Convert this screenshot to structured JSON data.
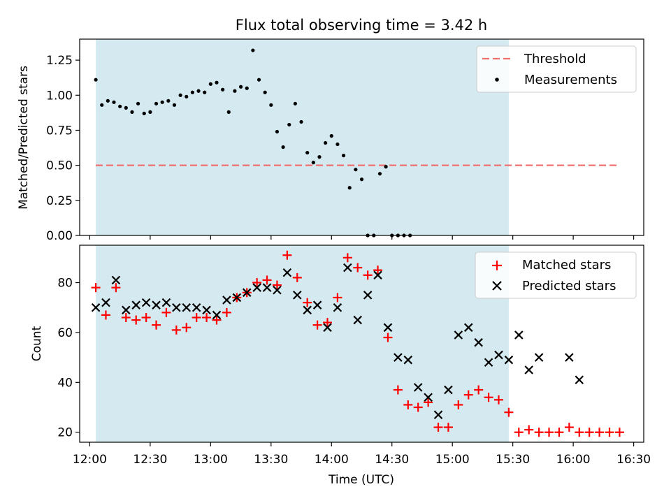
{
  "chart_data": [
    {
      "type": "scatter",
      "title": "Flux total observing time = 3.42 h",
      "xlabel": "",
      "ylabel": "Matched/Predicted stars",
      "ylim": [
        0,
        1.4
      ],
      "yticks": [
        "0.00",
        "0.25",
        "0.50",
        "0.75",
        "1.00",
        "1.25"
      ],
      "yticks_values": [
        0,
        0.25,
        0.5,
        0.75,
        1.0,
        1.25
      ],
      "observing_window": {
        "start": "12:03",
        "end": "15:28",
        "color": "#d4e9f0"
      },
      "threshold": {
        "name": "Threshold",
        "value": 0.5,
        "x_start": "12:03",
        "x_end": "16:23",
        "color": "#f07070"
      },
      "legend": [
        "Threshold",
        "Measurements"
      ],
      "legend_position": "top-right",
      "series": [
        {
          "name": "Measurements",
          "marker": "dot",
          "points": [
            [
              "12:03",
              1.11
            ],
            [
              "12:06",
              0.93
            ],
            [
              "12:09",
              0.96
            ],
            [
              "12:12",
              0.95
            ],
            [
              "12:15",
              0.92
            ],
            [
              "12:18",
              0.91
            ],
            [
              "12:21",
              0.88
            ],
            [
              "12:24",
              0.94
            ],
            [
              "12:27",
              0.87
            ],
            [
              "12:30",
              0.88
            ],
            [
              "12:33",
              0.94
            ],
            [
              "12:36",
              0.95
            ],
            [
              "12:39",
              0.96
            ],
            [
              "12:42",
              0.93
            ],
            [
              "12:45",
              1.0
            ],
            [
              "12:48",
              0.99
            ],
            [
              "12:51",
              1.02
            ],
            [
              "12:54",
              1.03
            ],
            [
              "12:57",
              1.02
            ],
            [
              "13:00",
              1.08
            ],
            [
              "13:03",
              1.09
            ],
            [
              "13:06",
              1.04
            ],
            [
              "13:09",
              0.88
            ],
            [
              "13:12",
              1.03
            ],
            [
              "13:15",
              1.06
            ],
            [
              "13:18",
              1.05
            ],
            [
              "13:21",
              1.32
            ],
            [
              "13:24",
              1.11
            ],
            [
              "13:27",
              1.02
            ],
            [
              "13:30",
              0.93
            ],
            [
              "13:33",
              0.74
            ],
            [
              "13:36",
              0.63
            ],
            [
              "13:39",
              0.79
            ],
            [
              "13:42",
              0.94
            ],
            [
              "13:45",
              0.81
            ],
            [
              "13:48",
              0.59
            ],
            [
              "13:51",
              0.52
            ],
            [
              "13:54",
              0.56
            ],
            [
              "13:57",
              0.66
            ],
            [
              "14:00",
              0.71
            ],
            [
              "14:03",
              0.65
            ],
            [
              "14:06",
              0.57
            ],
            [
              "14:09",
              0.34
            ],
            [
              "14:12",
              0.47
            ],
            [
              "14:15",
              0.4
            ],
            [
              "14:18",
              0.0
            ],
            [
              "14:21",
              0.0
            ],
            [
              "14:24",
              0.44
            ],
            [
              "14:27",
              0.49
            ],
            [
              "14:30",
              0.0
            ],
            [
              "14:33",
              0.0
            ],
            [
              "14:36",
              0.0
            ],
            [
              "14:39",
              0.0
            ]
          ]
        }
      ]
    },
    {
      "type": "scatter",
      "title": "",
      "xlabel": "Time (UTC)",
      "ylabel": "Count",
      "ylim": [
        16,
        95
      ],
      "yticks": [
        "20",
        "40",
        "60",
        "80"
      ],
      "yticks_values": [
        20,
        40,
        60,
        80
      ],
      "xticks": [
        "12:00",
        "12:30",
        "13:00",
        "13:30",
        "14:00",
        "14:30",
        "15:00",
        "15:30",
        "16:00",
        "16:30"
      ],
      "xlim": [
        "11:55",
        "16:35"
      ],
      "legend": [
        "Matched stars",
        "Predicted stars"
      ],
      "legend_position": "top-right",
      "series": [
        {
          "name": "Matched stars",
          "marker": "plus",
          "color": "#ff0000",
          "points": [
            [
              "12:03",
              78
            ],
            [
              "12:08",
              67
            ],
            [
              "12:13",
              78
            ],
            [
              "12:18",
              66
            ],
            [
              "12:23",
              65
            ],
            [
              "12:28",
              66
            ],
            [
              "12:33",
              63
            ],
            [
              "12:38",
              68
            ],
            [
              "12:43",
              61
            ],
            [
              "12:48",
              62
            ],
            [
              "12:53",
              66
            ],
            [
              "12:58",
              66
            ],
            [
              "13:03",
              65
            ],
            [
              "13:08",
              68
            ],
            [
              "13:13",
              74
            ],
            [
              "13:18",
              76
            ],
            [
              "13:23",
              80
            ],
            [
              "13:28",
              81
            ],
            [
              "13:33",
              79
            ],
            [
              "13:38",
              91
            ],
            [
              "13:43",
              82
            ],
            [
              "13:48",
              72
            ],
            [
              "13:53",
              63
            ],
            [
              "13:58",
              64
            ],
            [
              "14:03",
              74
            ],
            [
              "14:08",
              90
            ],
            [
              "14:13",
              86
            ],
            [
              "14:18",
              83
            ],
            [
              "14:23",
              85
            ],
            [
              "14:28",
              58
            ],
            [
              "14:33",
              37
            ],
            [
              "14:38",
              31
            ],
            [
              "14:43",
              30
            ],
            [
              "14:48",
              32
            ],
            [
              "14:53",
              22
            ],
            [
              "14:58",
              22
            ],
            [
              "15:03",
              31
            ],
            [
              "15:08",
              35
            ],
            [
              "15:13",
              37
            ],
            [
              "15:18",
              34
            ],
            [
              "15:23",
              33
            ],
            [
              "15:28",
              28
            ],
            [
              "15:33",
              20
            ],
            [
              "15:38",
              21
            ],
            [
              "15:43",
              20
            ],
            [
              "15:48",
              20
            ],
            [
              "15:53",
              20
            ],
            [
              "15:58",
              22
            ],
            [
              "16:03",
              20
            ],
            [
              "16:08",
              20
            ],
            [
              "16:13",
              20
            ],
            [
              "16:18",
              20
            ],
            [
              "16:23",
              20
            ]
          ]
        },
        {
          "name": "Predicted stars",
          "marker": "x",
          "color": "#000000",
          "points": [
            [
              "12:03",
              70
            ],
            [
              "12:08",
              72
            ],
            [
              "12:13",
              81
            ],
            [
              "12:18",
              69
            ],
            [
              "12:23",
              71
            ],
            [
              "12:28",
              72
            ],
            [
              "12:33",
              71
            ],
            [
              "12:38",
              72
            ],
            [
              "12:43",
              70
            ],
            [
              "12:48",
              70
            ],
            [
              "12:53",
              70
            ],
            [
              "12:58",
              69
            ],
            [
              "13:03",
              67
            ],
            [
              "13:08",
              73
            ],
            [
              "13:13",
              74
            ],
            [
              "13:18",
              76
            ],
            [
              "13:23",
              78
            ],
            [
              "13:28",
              78
            ],
            [
              "13:33",
              77
            ],
            [
              "13:38",
              84
            ],
            [
              "13:43",
              75
            ],
            [
              "13:48",
              69
            ],
            [
              "13:53",
              71
            ],
            [
              "13:58",
              62
            ],
            [
              "14:03",
              70
            ],
            [
              "14:08",
              86
            ],
            [
              "14:13",
              65
            ],
            [
              "14:18",
              75
            ],
            [
              "14:23",
              83
            ],
            [
              "14:28",
              62
            ],
            [
              "14:33",
              50
            ],
            [
              "14:38",
              49
            ],
            [
              "14:43",
              38
            ],
            [
              "14:48",
              34
            ],
            [
              "14:53",
              27
            ],
            [
              "14:58",
              37
            ],
            [
              "15:03",
              59
            ],
            [
              "15:08",
              62
            ],
            [
              "15:13",
              56
            ],
            [
              "15:18",
              48
            ],
            [
              "15:23",
              51
            ],
            [
              "15:28",
              49
            ],
            [
              "15:33",
              59
            ],
            [
              "15:38",
              45
            ],
            [
              "15:43",
              50
            ],
            [
              "15:58",
              50
            ],
            [
              "16:03",
              41
            ]
          ]
        }
      ]
    }
  ]
}
